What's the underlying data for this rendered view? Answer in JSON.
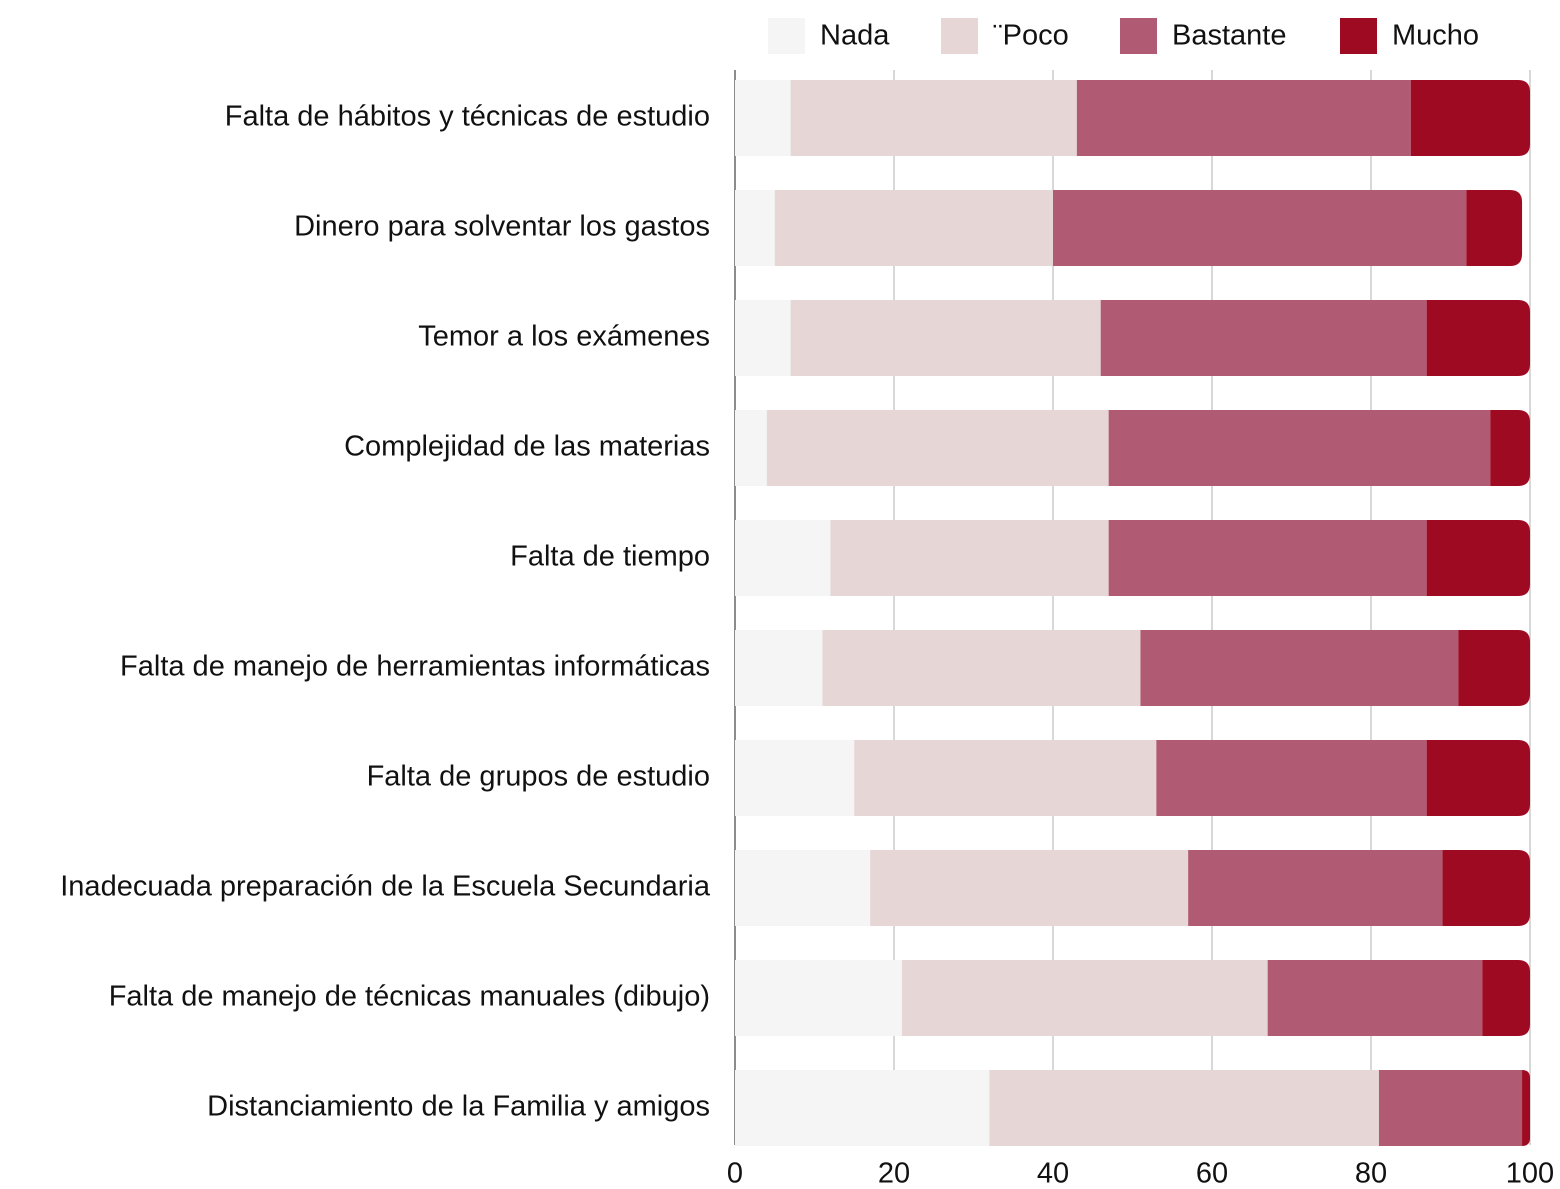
{
  "chart_data": {
    "type": "stacked-bar-horizontal",
    "categories": [
      "Falta de hábitos y técnicas de estudio",
      "Dinero para solventar los gastos",
      "Temor a los exámenes",
      "Complejidad de las materias",
      "Falta de tiempo",
      "Falta de manejo de herramientas informáticas",
      "Falta de grupos de estudio",
      "Inadecuada preparación de la Escuela Secundaria",
      "Falta de manejo de técnicas manuales (dibujo)",
      "Distanciamiento de la Familia y amigos"
    ],
    "series": [
      {
        "name": "Nada",
        "color": "#f5f5f5",
        "values": [
          7,
          5,
          7,
          4,
          12,
          11,
          15,
          17,
          21,
          32
        ]
      },
      {
        "name": "¨Poco",
        "color": "#e6d6d6",
        "values": [
          36,
          35,
          39,
          43,
          35,
          40,
          38,
          40,
          46,
          49
        ]
      },
      {
        "name": "Bastante",
        "color": "#b05a73",
        "values": [
          42,
          52,
          41,
          48,
          40,
          40,
          34,
          32,
          27,
          18
        ]
      },
      {
        "name": "Mucho",
        "color": "#9e0a22",
        "values": [
          15,
          7,
          13,
          5,
          13,
          9,
          13,
          11,
          6,
          1
        ]
      }
    ],
    "xlim": [
      0,
      100
    ],
    "xticks": [
      0,
      20,
      40,
      60,
      80,
      100
    ],
    "grid": true,
    "legend": "top"
  }
}
